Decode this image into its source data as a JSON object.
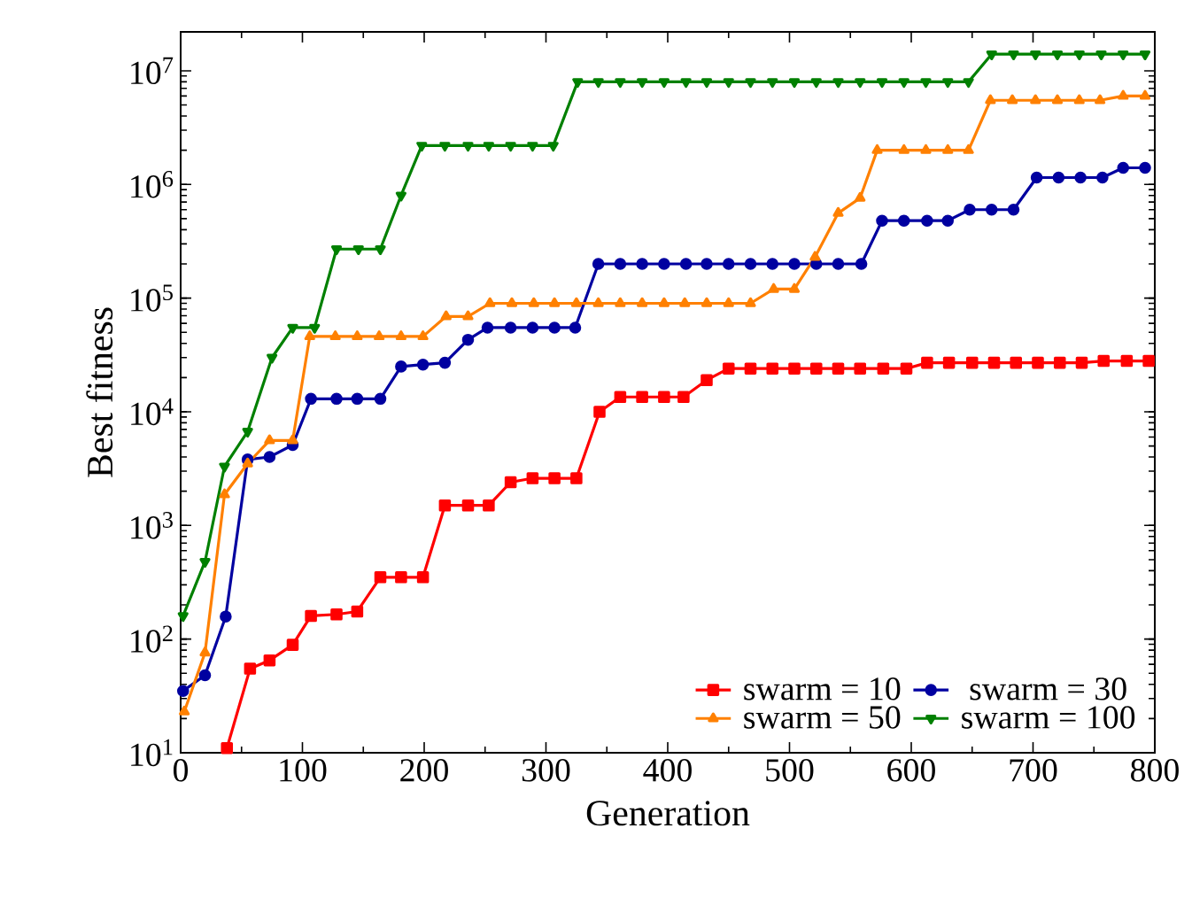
{
  "chart_data": {
    "type": "line",
    "xlabel": "Generation",
    "ylabel": "Best fitness",
    "xlim": [
      0,
      800
    ],
    "xticks": [
      0,
      100,
      200,
      300,
      400,
      500,
      600,
      700,
      800
    ],
    "ylim": [
      10,
      22000000
    ],
    "log": "y",
    "yticks": [
      {
        "value": 10,
        "label": "10$^{1}$"
      },
      {
        "value": 100,
        "label": "10$^{2}$"
      },
      {
        "value": 1000,
        "label": "10$^{3}$"
      },
      {
        "value": 10000,
        "label": "10$^{4}$"
      },
      {
        "value": 100000,
        "label": "10$^{5}$"
      },
      {
        "value": 1000000,
        "label": "10$^{6}$"
      },
      {
        "value": 10000000,
        "label": "10$^{7}$"
      }
    ],
    "grid": false,
    "legend": "bottom right",
    "line_style": "solid",
    "series": [
      {
        "name": "swarm = 10",
        "color": "#ff0000",
        "marker": "square",
        "x": [
          38,
          57,
          73,
          92,
          107,
          128,
          145,
          164,
          181,
          199,
          217,
          236,
          253,
          271,
          289,
          307,
          325,
          344,
          361,
          379,
          397,
          413,
          432,
          450,
          468,
          486,
          504,
          522,
          540,
          558,
          577,
          596,
          613,
          631,
          650,
          668,
          686,
          704,
          722,
          740,
          758,
          777,
          795
        ],
        "values": [
          11,
          55,
          65,
          89,
          160,
          165,
          175,
          350,
          350,
          350,
          1500,
          1500,
          1500,
          2400,
          2600,
          2600,
          2600,
          10000,
          13500,
          13500,
          13500,
          13500,
          19000,
          24000,
          24000,
          24000,
          24000,
          24000,
          24000,
          24000,
          24000,
          24000,
          27000,
          27000,
          27000,
          27000,
          27000,
          27000,
          27000,
          27000,
          28000,
          28000,
          28000
        ]
      },
      {
        "name": "swarm = 30",
        "color": "#0000a0",
        "marker": "circle",
        "x": [
          2,
          20,
          37,
          55,
          73,
          92,
          107,
          128,
          145,
          164,
          181,
          199,
          217,
          236,
          252,
          271,
          289,
          307,
          324,
          343,
          361,
          379,
          397,
          415,
          432,
          450,
          468,
          486,
          504,
          522,
          540,
          559,
          576,
          594,
          613,
          630,
          648,
          666,
          684,
          703,
          721,
          739,
          757,
          774,
          792
        ],
        "values": [
          35,
          48,
          158,
          3800,
          4000,
          5100,
          13000,
          13000,
          13000,
          13000,
          25000,
          26000,
          27000,
          43000,
          55000,
          55000,
          55000,
          55000,
          55000,
          200000,
          200000,
          200000,
          200000,
          200000,
          200000,
          200000,
          200000,
          200000,
          200000,
          200000,
          200000,
          200000,
          480000,
          480000,
          480000,
          480000,
          600000,
          600000,
          600000,
          1150000,
          1150000,
          1150000,
          1150000,
          1400000,
          1400000
        ]
      },
      {
        "name": "swarm = 50",
        "color": "#ff8000",
        "marker": "triangle",
        "x": [
          3,
          20,
          36,
          55,
          73,
          92,
          106,
          127,
          145,
          163,
          181,
          199,
          218,
          236,
          254,
          272,
          290,
          307,
          325,
          343,
          361,
          379,
          397,
          414,
          432,
          450,
          468,
          487,
          504,
          521,
          540,
          558,
          572,
          594,
          612,
          630,
          647,
          665,
          683,
          702,
          720,
          738,
          755,
          774,
          792
        ],
        "values": [
          23,
          76,
          1870,
          3500,
          5600,
          5600,
          46000,
          46000,
          46000,
          46000,
          46000,
          46000,
          69000,
          69000,
          90000,
          90000,
          90000,
          90000,
          90000,
          90000,
          90000,
          90000,
          90000,
          90000,
          90000,
          90000,
          90000,
          120000,
          120000,
          230000,
          560000,
          760000,
          2000000,
          2000000,
          2000000,
          2000000,
          2000000,
          5500000,
          5500000,
          5500000,
          5500000,
          5500000,
          5500000,
          6000000,
          6000000
        ]
      },
      {
        "name": "swarm = 100",
        "color": "#008000",
        "marker": "triangle-down",
        "x": [
          2,
          20,
          36,
          55,
          75,
          92,
          110,
          128,
          146,
          164,
          181,
          198,
          217,
          236,
          253,
          271,
          289,
          306,
          326,
          343,
          361,
          379,
          397,
          415,
          432,
          450,
          468,
          486,
          504,
          522,
          540,
          558,
          576,
          594,
          612,
          630,
          647,
          666,
          684,
          702,
          720,
          738,
          756,
          774,
          792
        ],
        "values": [
          160,
          480,
          3300,
          6700,
          30000,
          55000,
          55000,
          270000,
          270000,
          270000,
          800000,
          2200000,
          2200000,
          2200000,
          2200000,
          2200000,
          2200000,
          2200000,
          8000000,
          8000000,
          8000000,
          8000000,
          8000000,
          8000000,
          8000000,
          8000000,
          8000000,
          8000000,
          8000000,
          8000000,
          8000000,
          8000000,
          8000000,
          8000000,
          8000000,
          8000000,
          8000000,
          14000000,
          14000000,
          14000000,
          14000000,
          14000000,
          14000000,
          14000000,
          14000000
        ]
      }
    ]
  }
}
